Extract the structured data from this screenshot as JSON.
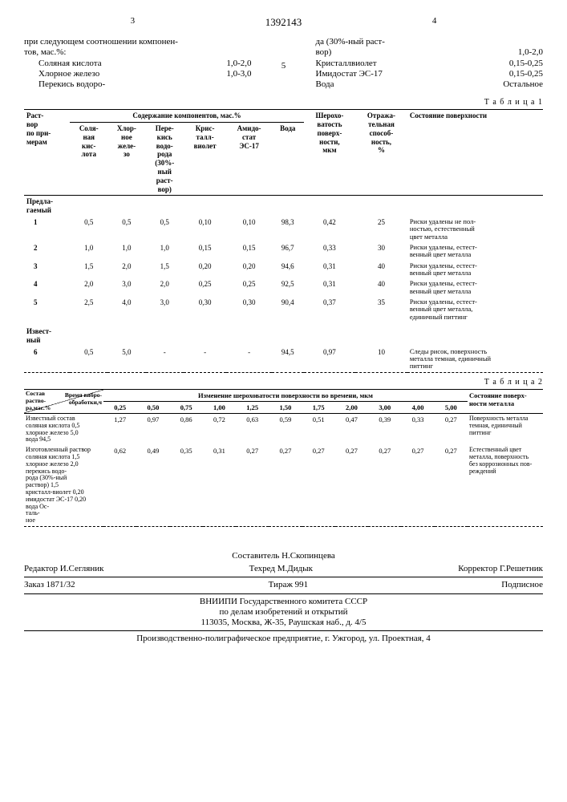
{
  "doc_number": "1392143",
  "col_left_num": "3",
  "col_right_num": "4",
  "mid_num": "5",
  "left_text": "при следующем соотношении компонен-\nтов, мас.%:",
  "left_components": [
    {
      "name": "Соляная кислота",
      "val": "1,0-2,0"
    },
    {
      "name": "Хлорное железо",
      "val": "1,0-3,0"
    },
    {
      "name": "Перекись водоро-",
      "val": ""
    }
  ],
  "right_text_first": "да (30%-ный раст-\nвор)",
  "right_components": [
    {
      "name": "",
      "val": "1,0-2,0"
    },
    {
      "name": "Кристаллвиолет",
      "val": "0,15-0,25"
    },
    {
      "name": "Имидостат ЭС-17",
      "val": "0,15-0,25"
    },
    {
      "name": "Вода",
      "val": "Остальное"
    }
  ],
  "table1_label": "Т а б л и ц а 1",
  "t1_headers": {
    "c0": "Раст-\nвор\nпо при-\nмерам",
    "grp": "Содержание компонентов, мас.%",
    "c1": "Соля-\nная\nкис-\nлота",
    "c2": "Хлор-\nное\nжеле-\nзо",
    "c3": "Пере-\nкись\nводо-\nрода\n(30%-\nный\nраст-\nвор)",
    "c4": "Крис-\nталл-\nвиолет",
    "c5": "Амидо-\nстат\nЭС-17",
    "c6": "Вода",
    "c7": "Шерохо-\nватость\nповерх-\nности,\nмкм",
    "c8": "Отража-\nтельная\nспособ-\nность,\n%",
    "c9": "Состояние поверхности"
  },
  "t1_section1": "Предла-\nгаемый",
  "t1_rows": [
    {
      "n": "1",
      "v": [
        "0,5",
        "0,5",
        "0,5",
        "0,10",
        "0,10",
        "98,3",
        "0,42",
        "25"
      ],
      "s": "Риски удалены не пол-\nностью, естественный\nцвет металла"
    },
    {
      "n": "2",
      "v": [
        "1,0",
        "1,0",
        "1,0",
        "0,15",
        "0,15",
        "96,7",
        "0,33",
        "30"
      ],
      "s": "Риски удалены, естест-\nвенный цвет металла"
    },
    {
      "n": "3",
      "v": [
        "1,5",
        "2,0",
        "1,5",
        "0,20",
        "0,20",
        "94,6",
        "0,31",
        "40"
      ],
      "s": "Риски удалены, естест-\nвенный цвет металла"
    },
    {
      "n": "4",
      "v": [
        "2,0",
        "3,0",
        "2,0",
        "0,25",
        "0,25",
        "92,5",
        "0,31",
        "40"
      ],
      "s": "Риски удалены, естест-\nвенный цвет металла"
    },
    {
      "n": "5",
      "v": [
        "2,5",
        "4,0",
        "3,0",
        "0,30",
        "0,30",
        "90,4",
        "0,37",
        "35"
      ],
      "s": "Риски удалены, естест-\nвенный цвет металла,\nединичный питтинг"
    }
  ],
  "t1_section2": "Извест-\nный",
  "t1_row6": {
    "n": "6",
    "v": [
      "0,5",
      "5,0",
      "-",
      "-",
      "-",
      "94,5",
      "0,97",
      "10"
    ],
    "s": "Следы рисок, поверхность\nметалла темная, единичный\nпиттинг"
  },
  "table2_label": "Т а б л и ц а 2",
  "t2_headers": {
    "c0": "Состав\nраство-\nра,мас.%",
    "time": "Время вибро-\nобработки,ч",
    "grp": "Изменение шероховатости поверхности во времени, мкм",
    "cols": [
      "0,25",
      "0,50",
      "0,75",
      "1,00",
      "1,25",
      "1,50",
      "1,75",
      "2,00",
      "3,00",
      "4,00",
      "5,00"
    ],
    "last": "Состояние поверх-\nности металла"
  },
  "t2_row1": {
    "label": "Известный состав\nсоляная кислота 0,5\nхлорное железо 5,0\nвода 94,5",
    "vals": [
      "1,27",
      "0,97",
      "0,86",
      "0,72",
      "0,63",
      "0,59",
      "0,51",
      "0,47",
      "0,39",
      "0,33",
      "0,27"
    ],
    "state": "Поверхность металла\nтемная, единичный\nпиттинг"
  },
  "t2_row2": {
    "label": "Изготовленный раствор\nсоляная кислота 1,5\nхлорное железо 2,0\nперекись водо-\nрода (30%-ный\nраствор) 1,5\nкристалл-виолет 0,20\nимидостат ЭС-17 0,20\nвода Ос-\nталь-\nное",
    "vals": [
      "0,62",
      "0,49",
      "0,35",
      "0,31",
      "0,27",
      "0,27",
      "0,27",
      "0,27",
      "0,27",
      "0,27",
      "0,27"
    ],
    "state": "Естественный цвет\nметалла, поверхность\nбез коррозионных пов-\nреждений"
  },
  "footer": {
    "compiler": "Составитель Н.Скопинцева",
    "editor": "Редактор И.Сегляник",
    "tech": "Техред М.Дидык",
    "corrector": "Корректор Г.Решетник",
    "order": "Заказ 1871/32",
    "tirage": "Тираж 991",
    "sub": "Подписное",
    "org1": "ВНИИПИ Государственного комитета СССР",
    "org2": "по делам изобретений и открытий",
    "addr1": "113035, Москва, Ж-35, Раушская наб., д. 4/5",
    "addr2": "Производственно-полиграфическое предприятие, г. Ужгород, ул. Проектная, 4"
  }
}
